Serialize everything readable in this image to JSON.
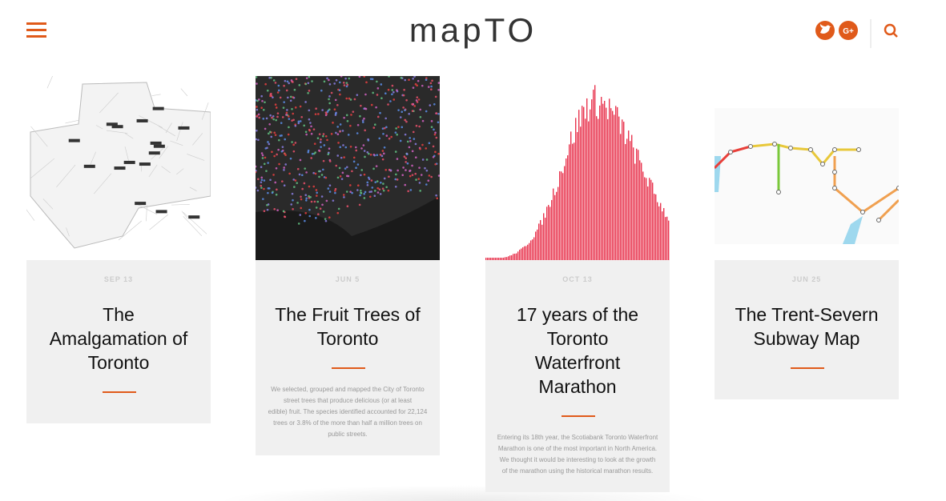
{
  "header": {
    "title": "mapTO"
  },
  "posts": [
    {
      "date": "SEP 13",
      "title": [
        "The",
        "Amalgamation of",
        "Toronto"
      ],
      "description": []
    },
    {
      "date": "JUN 5",
      "title": [
        "The Fruit Trees of",
        "Toronto"
      ],
      "description": [
        "We selected, grouped and mapped the City of Toronto",
        "street trees that produce delicious (or at least",
        "edible) fruit.  The species identified accounted for 22,124",
        "trees or 3.8% of the more than half a million trees on",
        "public streets."
      ]
    },
    {
      "date": "OCT 13",
      "title": [
        "17 years of the",
        "Toronto",
        "Waterfront",
        "Marathon"
      ],
      "description": [
        "Entering its 18th year, the Scotiabank Toronto Waterfront",
        "Marathon is one of the most important in North America.",
        "We thought it would be interesting to look at the growth",
        "of the marathon using the historical marathon results."
      ]
    },
    {
      "date": "JUN 25",
      "title": [
        "The Trent-Severn",
        "Subway Map"
      ],
      "description": []
    }
  ]
}
